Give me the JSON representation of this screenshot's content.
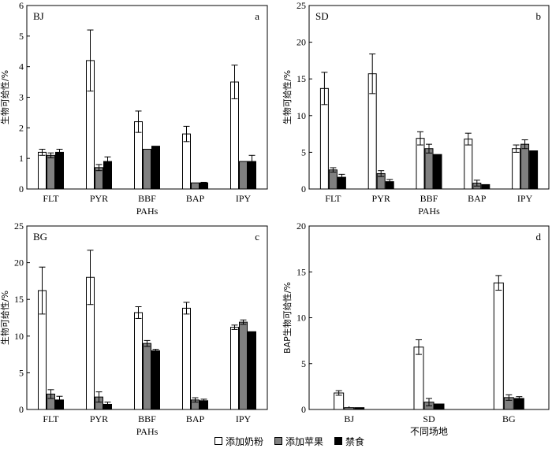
{
  "legend": {
    "items": [
      {
        "label": "添加奶粉",
        "color": "#ffffff"
      },
      {
        "label": "添加苹果",
        "color": "#808080"
      },
      {
        "label": "禁食",
        "color": "#000000"
      }
    ]
  },
  "chart_data": [
    {
      "type": "bar",
      "panel_label": "BJ",
      "panel_letter": "a",
      "categories": [
        "FLT",
        "PYR",
        "BBF",
        "BAP",
        "IPY"
      ],
      "xlabel": "PAHs",
      "ylabel": "生物可给性/%",
      "ylim": [
        0,
        6
      ],
      "yticks": [
        0,
        1,
        2,
        3,
        4,
        5,
        6
      ],
      "series": [
        {
          "name": "添加奶粉",
          "values": [
            1.2,
            4.2,
            2.2,
            1.8,
            3.5
          ],
          "errors": [
            0.1,
            1.0,
            0.35,
            0.25,
            0.55
          ]
        },
        {
          "name": "添加苹果",
          "values": [
            1.1,
            0.7,
            1.3,
            0.2,
            0.9
          ],
          "errors": [
            0.08,
            0.1,
            0.0,
            0.0,
            0.0
          ]
        },
        {
          "name": "禁食",
          "values": [
            1.2,
            0.9,
            1.4,
            0.2,
            0.9
          ],
          "errors": [
            0.1,
            0.15,
            0.0,
            0.02,
            0.2
          ]
        }
      ]
    },
    {
      "type": "bar",
      "panel_label": "SD",
      "panel_letter": "b",
      "categories": [
        "FLT",
        "PYR",
        "BBF",
        "BAP",
        "IPY"
      ],
      "xlabel": "PAHs",
      "ylabel": "生物可给性/%",
      "ylim": [
        0,
        25
      ],
      "yticks": [
        0,
        5,
        10,
        15,
        20,
        25
      ],
      "series": [
        {
          "name": "添加奶粉",
          "values": [
            13.7,
            15.7,
            6.9,
            6.8,
            5.5
          ],
          "errors": [
            2.2,
            2.7,
            0.9,
            0.8,
            0.5
          ]
        },
        {
          "name": "添加苹果",
          "values": [
            2.6,
            2.1,
            5.5,
            0.8,
            6.1
          ],
          "errors": [
            0.3,
            0.4,
            0.6,
            0.4,
            0.6
          ]
        },
        {
          "name": "禁食",
          "values": [
            1.6,
            1.0,
            4.7,
            0.6,
            5.2
          ],
          "errors": [
            0.4,
            0.3,
            0.0,
            0.0,
            0.0
          ]
        }
      ]
    },
    {
      "type": "bar",
      "panel_label": "BG",
      "panel_letter": "c",
      "categories": [
        "FLT",
        "PYR",
        "BBF",
        "BAP",
        "IPY"
      ],
      "xlabel": "PAHs",
      "ylabel": "生物可给性/%",
      "ylim": [
        0,
        25
      ],
      "yticks": [
        0,
        5,
        10,
        15,
        20,
        25
      ],
      "series": [
        {
          "name": "添加奶粉",
          "values": [
            16.2,
            18.0,
            13.2,
            13.8,
            11.2
          ],
          "errors": [
            3.2,
            3.7,
            0.8,
            0.8,
            0.3
          ]
        },
        {
          "name": "添加苹果",
          "values": [
            2.1,
            1.7,
            9.0,
            1.3,
            11.9
          ],
          "errors": [
            0.6,
            0.7,
            0.4,
            0.3,
            0.3
          ]
        },
        {
          "name": "禁食",
          "values": [
            1.3,
            0.7,
            8.0,
            1.2,
            10.6
          ],
          "errors": [
            0.5,
            0.3,
            0.2,
            0.2,
            0.0
          ]
        }
      ]
    },
    {
      "type": "bar",
      "panel_letter": "d",
      "categories": [
        "BJ",
        "SD",
        "BG"
      ],
      "xlabel": "不同场地",
      "ylabel": "BAP生物可给性/%",
      "ylim": [
        0,
        20
      ],
      "yticks": [
        0,
        5,
        10,
        15,
        20
      ],
      "series": [
        {
          "name": "添加奶粉",
          "values": [
            1.8,
            6.8,
            13.8
          ],
          "errors": [
            0.25,
            0.8,
            0.8
          ]
        },
        {
          "name": "添加苹果",
          "values": [
            0.2,
            0.8,
            1.3
          ],
          "errors": [
            0.0,
            0.4,
            0.3
          ]
        },
        {
          "name": "禁食",
          "values": [
            0.2,
            0.6,
            1.2
          ],
          "errors": [
            0.0,
            0.0,
            0.2
          ]
        }
      ]
    }
  ]
}
